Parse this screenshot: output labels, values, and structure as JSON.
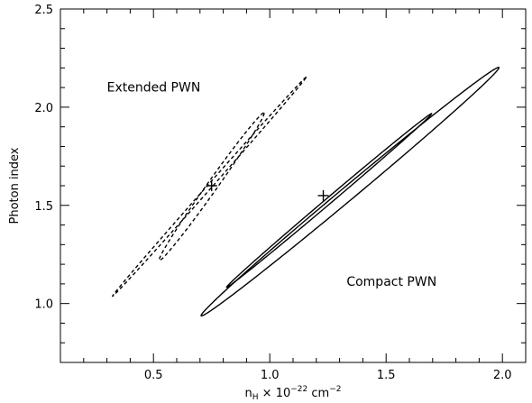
{
  "chart_data": {
    "type": "contour",
    "xlabel": {
      "base": "n",
      "sub": "H",
      "mid": " × 10",
      "exp": "−22",
      "unit": " cm",
      "unit_exp": "−2"
    },
    "ylabel": "Photon index",
    "xlim": [
      0.1,
      2.1
    ],
    "ylim": [
      0.7,
      2.5
    ],
    "x_major_ticks": [
      0.5,
      1.0,
      1.5,
      2.0
    ],
    "x_tick_labels": [
      "0.5",
      "1.0",
      "1.5",
      "2.0"
    ],
    "x_minor_step": 0.1,
    "y_major_ticks": [
      1.0,
      1.5,
      2.0,
      2.5
    ],
    "y_tick_labels": [
      "1.0",
      "1.5",
      "2.0",
      "2.5"
    ],
    "y_minor_step": 0.1,
    "grid": false,
    "series": [
      {
        "name": "Extended PWN",
        "line_style": "dashed",
        "best_fit": {
          "x": 0.75,
          "y": 1.6
        },
        "contours": [
          {
            "center": [
              0.75,
              1.595
            ],
            "corner": [
              0.51,
              1.24
            ],
            "tip": [
              0.96,
              1.99
            ]
          },
          {
            "center": [
              0.74,
              1.595
            ],
            "corner": [
              0.35,
              1.09
            ],
            "tip": [
              1.18,
              2.2
            ]
          }
        ]
      },
      {
        "name": "Compact PWN",
        "line_style": "solid",
        "best_fit": {
          "x": 1.23,
          "y": 1.55
        },
        "contours": [
          {
            "center": [
              1.255,
              1.525
            ],
            "corner": [
              0.84,
              1.13
            ],
            "tip": [
              1.72,
              2.01
            ]
          },
          {
            "center": [
              1.345,
              1.57
            ],
            "corner": [
              0.72,
              1.0
            ],
            "tip": [
              2.0,
              2.26
            ]
          }
        ]
      }
    ],
    "annotations": [
      {
        "text": "Extended PWN",
        "x": 0.3,
        "y": 2.08
      },
      {
        "text": "Compact PWN",
        "x": 1.33,
        "y": 1.09
      }
    ]
  }
}
